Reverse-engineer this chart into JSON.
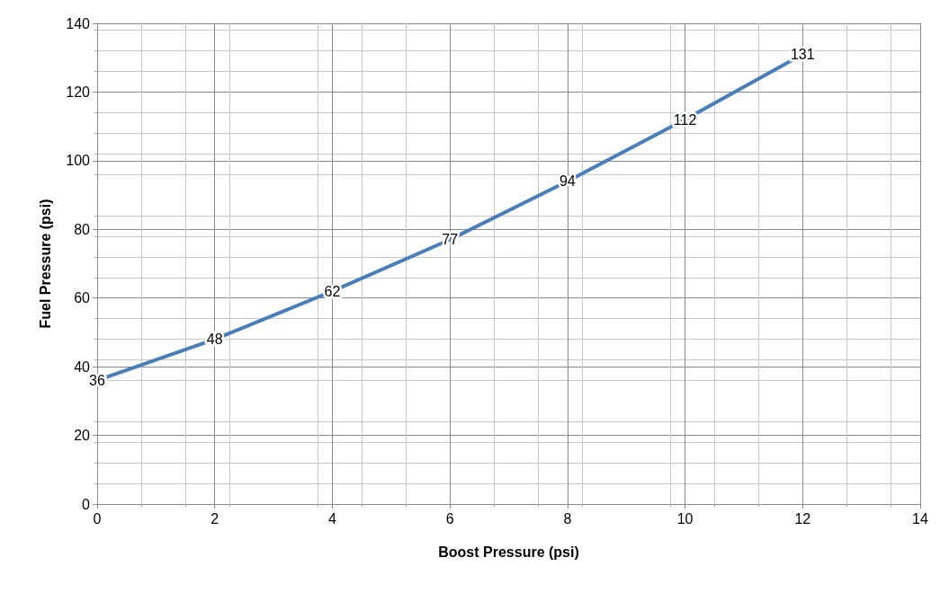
{
  "chart_data": {
    "type": "line",
    "xlabel": "Boost Pressure (psi)",
    "ylabel": "Fuel Pressure (psi)",
    "x": [
      0,
      2,
      4,
      6,
      8,
      10,
      12
    ],
    "values": [
      36,
      48,
      62,
      77,
      94,
      112,
      131
    ],
    "color": "#4a7ebb",
    "xlim": [
      0,
      14
    ],
    "xticks": [
      0,
      2,
      4,
      6,
      8,
      10,
      12,
      14
    ],
    "ylim": [
      0,
      140
    ],
    "yticks": [
      0,
      20,
      40,
      60,
      80,
      100,
      120,
      140
    ],
    "grid": true,
    "marker": "none",
    "line_style": "solid",
    "data_labels": true
  }
}
